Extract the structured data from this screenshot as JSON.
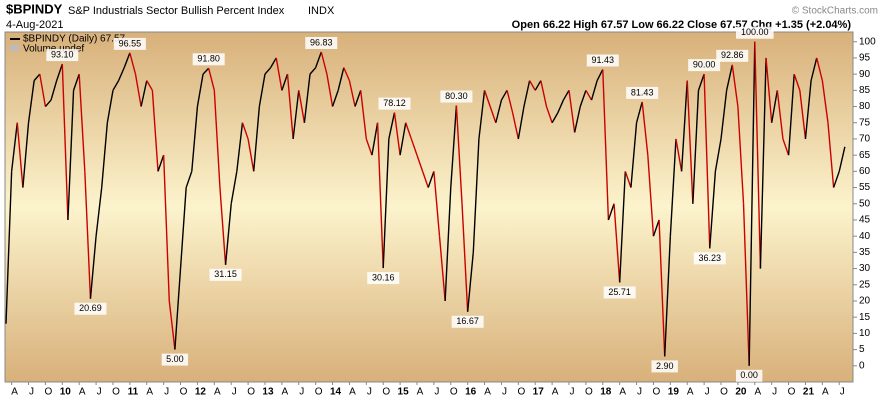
{
  "chart_data": {
    "type": "line",
    "symbol": "$BPINDY",
    "title": "S&P Industrials Sector Bullish Percent Index",
    "exchange": "INDX",
    "date": "4-Aug-2021",
    "quote": "Open 66.22  High 67.57  Low 66.22  Close 67.57  Chg +1.35 (+2.04%)",
    "credit": "© StockCharts.com",
    "secondary_legend": "Volume undef",
    "categories": [
      null,
      "A",
      null,
      null,
      "J",
      null,
      null,
      "O",
      null,
      null,
      "10",
      null,
      null,
      "A",
      null,
      null,
      "J",
      null,
      null,
      "O",
      null,
      null,
      "11",
      null,
      null,
      "A",
      null,
      null,
      "J",
      null,
      null,
      "O",
      null,
      null,
      "12",
      null,
      null,
      "A",
      null,
      null,
      "J",
      null,
      null,
      "O",
      null,
      null,
      "13",
      null,
      null,
      "A",
      null,
      null,
      "J",
      null,
      null,
      "O",
      null,
      null,
      "14",
      null,
      null,
      "A",
      null,
      null,
      "J",
      null,
      null,
      "O",
      null,
      null,
      "15",
      null,
      null,
      "A",
      null,
      null,
      "J",
      null,
      null,
      "O",
      null,
      null,
      "16",
      null,
      null,
      "A",
      null,
      null,
      "J",
      null,
      null,
      "O",
      null,
      null,
      "17",
      null,
      null,
      "A",
      null,
      null,
      "J",
      null,
      null,
      "O",
      null,
      null,
      "18",
      null,
      null,
      "A",
      null,
      null,
      "J",
      null,
      null,
      "O",
      null,
      null,
      "19",
      null,
      null,
      "A",
      null,
      null,
      "J",
      null,
      null,
      "O",
      null,
      null,
      "20",
      null,
      null,
      "A",
      null,
      null,
      "J",
      null,
      null,
      "O",
      null,
      null,
      "21",
      null,
      null,
      "A",
      null,
      null,
      "J",
      null
    ],
    "series": [
      {
        "name": "$BPINDY (Daily) 67.57",
        "color": "#000000",
        "down_color": "#cc0000",
        "values": [
          13,
          60,
          75,
          55,
          75,
          88,
          90,
          80,
          82,
          88,
          93.1,
          45,
          85,
          90,
          60,
          20.69,
          40,
          55,
          75,
          85,
          88,
          92,
          96.55,
          90,
          80,
          88,
          85,
          60,
          65,
          20,
          5,
          30,
          55,
          60,
          80,
          90,
          91.8,
          85,
          55,
          31.15,
          50,
          60,
          75,
          70,
          60,
          80,
          90,
          92,
          95,
          85,
          90,
          70,
          85,
          75,
          90,
          92,
          96.83,
          90,
          80,
          85,
          92,
          88,
          80,
          85,
          70,
          65,
          75,
          30.16,
          70,
          78.12,
          65,
          75,
          70,
          65,
          60,
          55,
          60,
          40,
          20,
          55,
          80.3,
          50,
          16.67,
          35,
          70,
          85,
          80,
          75,
          82,
          85,
          78,
          70,
          80,
          88,
          85,
          88,
          80,
          75,
          78,
          82,
          85,
          72,
          80,
          85,
          82,
          88,
          91.43,
          45,
          50,
          25.71,
          60,
          55,
          75,
          81.43,
          65,
          40,
          45,
          2.9,
          40,
          70,
          60,
          88,
          50,
          85,
          90,
          36.23,
          60,
          70,
          85,
          92.86,
          80,
          50,
          0,
          100,
          30,
          95,
          75,
          85,
          70,
          65,
          90,
          85,
          70,
          88,
          95,
          88,
          75,
          55,
          60,
          67.57
        ],
        "value_labels": [
          null,
          null,
          null,
          null,
          null,
          null,
          null,
          null,
          null,
          null,
          "93.10",
          null,
          null,
          null,
          null,
          "20.69",
          null,
          null,
          null,
          null,
          null,
          null,
          "96.55",
          null,
          null,
          null,
          null,
          null,
          null,
          null,
          "5.00",
          null,
          null,
          null,
          null,
          null,
          "91.80",
          null,
          null,
          "31.15",
          null,
          null,
          null,
          null,
          null,
          null,
          null,
          null,
          null,
          null,
          null,
          null,
          null,
          null,
          null,
          null,
          "96.83",
          null,
          null,
          null,
          null,
          null,
          null,
          null,
          null,
          null,
          null,
          "30.16",
          null,
          "78.12",
          null,
          null,
          null,
          null,
          null,
          null,
          null,
          null,
          null,
          null,
          "80.30",
          null,
          "16.67",
          null,
          null,
          null,
          null,
          null,
          null,
          null,
          null,
          null,
          null,
          null,
          null,
          null,
          null,
          null,
          null,
          null,
          null,
          null,
          null,
          null,
          null,
          null,
          "91.43",
          null,
          null,
          "25.71",
          null,
          null,
          null,
          "81.43",
          null,
          null,
          null,
          "2.90",
          null,
          null,
          null,
          null,
          null,
          null,
          "90.00",
          "36.23",
          null,
          null,
          null,
          "92.86",
          null,
          null,
          "0.00",
          "100.00",
          null,
          null,
          null,
          null,
          null,
          null,
          null,
          null,
          null,
          null,
          null,
          null,
          null,
          null,
          null,
          null
        ]
      }
    ],
    "ylim": [
      -5,
      103
    ],
    "yticks": [
      0,
      5,
      10,
      15,
      20,
      25,
      30,
      35,
      40,
      45,
      50,
      55,
      60,
      65,
      70,
      75,
      80,
      85,
      90,
      95,
      100
    ],
    "axis_side": "right",
    "grid": false
  }
}
